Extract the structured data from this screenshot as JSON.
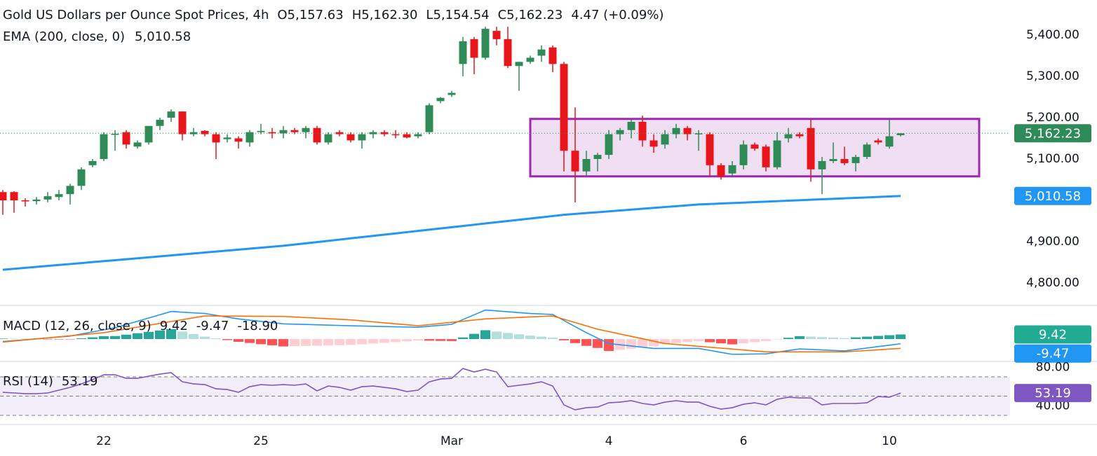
{
  "chart_data": [
    {
      "type": "candlestick",
      "title": "Gold US Dollars per Ounce Spot Prices, 4h",
      "ohlc": [
        {
          "key": "O",
          "value": 5157.63,
          "label": "5,157.63"
        },
        {
          "key": "H",
          "value": 5162.3,
          "label": "5,162.30"
        },
        {
          "key": "L",
          "value": 5154.54,
          "label": "5,154.54"
        },
        {
          "key": "C",
          "value": 5162.23,
          "label": "5,162.23"
        }
      ],
      "change": {
        "value": 4.47,
        "label": "4.47 (+0.09%)"
      },
      "categories": [
        null,
        null,
        null,
        null,
        null,
        null,
        null,
        null,
        null,
        "22",
        null,
        null,
        null,
        null,
        null,
        null,
        null,
        null,
        null,
        null,
        null,
        null,
        null,
        "25",
        null,
        null,
        null,
        null,
        null,
        null,
        null,
        null,
        null,
        null,
        null,
        null,
        null,
        null,
        null,
        null,
        "Mar",
        null,
        null,
        null,
        null,
        null,
        null,
        null,
        null,
        null,
        null,
        null,
        null,
        null,
        "4",
        null,
        null,
        null,
        null,
        null,
        null,
        null,
        null,
        null,
        null,
        null,
        "6",
        null,
        null,
        null,
        null,
        null,
        null,
        null,
        null,
        null,
        null,
        null,
        null,
        "10",
        null
      ],
      "open": [
        5020,
        5020,
        5000,
        4998,
        5002,
        5008,
        5015,
        5035,
        5085,
        5100,
        5160,
        5165,
        5130,
        5140,
        5180,
        5200,
        5215,
        5160,
        5168,
        5160,
        5148,
        5150,
        5140,
        5165,
        5165,
        5162,
        5170,
        5165,
        5175,
        5140,
        5165,
        5160,
        5145,
        5160,
        5165,
        5160,
        5160,
        5155,
        5165,
        5240,
        5255,
        5330,
        5390,
        5345,
        5410,
        5390,
        5325,
        5335,
        5350,
        5370,
        5330,
        5120,
        5070,
        5100,
        5110,
        5160,
        5170,
        5190,
        5145,
        5135,
        5160,
        5175,
        5160,
        5160,
        5085,
        5065,
        5085,
        5135,
        5130,
        5080,
        5150,
        5160,
        5175,
        5075,
        5095,
        5100,
        5090,
        5105,
        5145,
        5130,
        5157.63
      ],
      "high": [
        5025,
        5022,
        5005,
        5008,
        5020,
        5025,
        5040,
        5080,
        5100,
        5165,
        5170,
        5170,
        5145,
        5180,
        5200,
        5220,
        5215,
        5175,
        5170,
        5165,
        5160,
        5155,
        5170,
        5185,
        5175,
        5180,
        5175,
        5180,
        5180,
        5165,
        5170,
        5165,
        5165,
        5170,
        5170,
        5170,
        5165,
        5165,
        5235,
        5250,
        5265,
        5395,
        5395,
        5420,
        5420,
        5420,
        5335,
        5350,
        5375,
        5375,
        5335,
        5225,
        5120,
        5115,
        5170,
        5175,
        5195,
        5205,
        5160,
        5170,
        5185,
        5180,
        5170,
        5165,
        5090,
        5095,
        5145,
        5140,
        5135,
        5165,
        5175,
        5165,
        5195,
        5105,
        5140,
        5130,
        5110,
        5140,
        5150,
        5195,
        5162.3
      ],
      "low": [
        4965,
        4970,
        4985,
        4990,
        4995,
        5000,
        4990,
        5025,
        5080,
        5095,
        5120,
        5125,
        5125,
        5135,
        5170,
        5190,
        5145,
        5155,
        5155,
        5100,
        5140,
        5125,
        5130,
        5160,
        5150,
        5150,
        5160,
        5150,
        5135,
        5135,
        5155,
        5140,
        5125,
        5150,
        5155,
        5150,
        5150,
        5150,
        5160,
        5235,
        5250,
        5300,
        5305,
        5340,
        5375,
        5320,
        5265,
        5330,
        5335,
        5310,
        5070,
        4995,
        5060,
        5070,
        5100,
        5145,
        5150,
        5130,
        5115,
        5125,
        5150,
        5145,
        5120,
        5060,
        5050,
        5060,
        5075,
        5120,
        5070,
        5075,
        5140,
        5150,
        5045,
        5015,
        5090,
        5085,
        5070,
        5100,
        5135,
        5125,
        5154.54
      ],
      "close": [
        5000,
        5000,
        4998,
        5002,
        5010,
        5015,
        5035,
        5075,
        5095,
        5160,
        5161,
        5135,
        5140,
        5180,
        5195,
        5215,
        5160,
        5165,
        5160,
        5140,
        5152,
        5142,
        5165,
        5168,
        5162,
        5170,
        5165,
        5175,
        5140,
        5160,
        5160,
        5145,
        5160,
        5165,
        5160,
        5158,
        5152,
        5160,
        5230,
        5248,
        5260,
        5385,
        5345,
        5415,
        5390,
        5325,
        5335,
        5345,
        5365,
        5330,
        5120,
        5070,
        5100,
        5110,
        5160,
        5170,
        5190,
        5145,
        5130,
        5160,
        5175,
        5160,
        5162,
        5085,
        5058,
        5085,
        5135,
        5125,
        5080,
        5145,
        5160,
        5155,
        5075,
        5095,
        5100,
        5090,
        5105,
        5135,
        5140,
        5155,
        5162.23
      ],
      "up_color": "#2e8b57",
      "down_color": "#e8151b",
      "ylim": [
        4747.5,
        5484.7
      ],
      "yticks": [
        {
          "value": 5400,
          "label": "5,400.00"
        },
        {
          "value": 5300,
          "label": "5,300.00"
        },
        {
          "value": 5200,
          "label": "5,200.00"
        },
        {
          "value": 5100,
          "label": "5,100.00"
        },
        {
          "value": 4900,
          "label": "4,900.00"
        },
        {
          "value": 4800,
          "label": "4,800.00"
        }
      ],
      "grid": false,
      "last_price": {
        "value": 5162.23,
        "label": "5,162.23",
        "color": "#2e8b57"
      },
      "series": [
        {
          "name": "EMA (200, close, 0)",
          "color": "#2196f3",
          "values": [
            4832,
            4834.3,
            4836.6,
            4839,
            4841.3,
            4843.6,
            4845.9,
            4848.2,
            4850.6,
            4852.9,
            4855.2,
            4857.5,
            4859.8,
            4862.2,
            4864.5,
            4866.8,
            4869.1,
            4871.4,
            4873.8,
            4876.1,
            4878.4,
            4880.7,
            4883,
            4885.4,
            4887.7,
            4890,
            4893,
            4896,
            4899,
            4902,
            4905,
            4908,
            4911,
            4914,
            4917,
            4920,
            4923,
            4926,
            4929,
            4932,
            4935,
            4938,
            4941,
            4944,
            4947,
            4950,
            4953,
            4956,
            4959,
            4962,
            4965,
            4967.1,
            4969.2,
            4971.3,
            4973.3,
            4975.4,
            4977.5,
            4979.6,
            4981.7,
            4983.8,
            4985.8,
            4987.9,
            4990,
            4991.1,
            4992.3,
            4993.4,
            4994.6,
            4995.7,
            4996.8,
            4998,
            4999.1,
            5000.3,
            5001.4,
            5002.5,
            5003.7,
            5004.8,
            5006,
            5007.1,
            5008.2,
            5009.4,
            5010.58
          ],
          "last": {
            "value": 5010.58,
            "label": "5,010.58"
          }
        }
      ],
      "range_box": {
        "upper": 5197,
        "lower": 5058,
        "from": 47,
        "to": 87,
        "color": "#9c27b0"
      }
    },
    {
      "type": "macd",
      "title": "MACD (12, 26, close, 9)",
      "ylim": [
        -44,
        67
      ],
      "histogram": {
        "values": [
          1.0,
          0.7,
          0.5,
          0.2,
          -0.1,
          -0.4,
          -0.7,
          1.5,
          3.6,
          5.8,
          6.2,
          9.0,
          11.9,
          14.7,
          17.5,
          20.3,
          15.3,
          10.1,
          5.0,
          1.4,
          -2.0,
          -5.6,
          -7.9,
          -10.3,
          -12.6,
          -15.0,
          -14.5,
          -14.0,
          -13.5,
          -13.0,
          -12.5,
          -12.0,
          -10.5,
          -9.0,
          -7.5,
          -6.0,
          -4.5,
          -3.0,
          -3.3,
          -3.7,
          -4.0,
          3.4,
          10.6,
          18.0,
          15.3,
          12.5,
          9.8,
          7.0,
          5.0,
          3.0,
          -2.6,
          -8.2,
          -13.8,
          -18.0,
          -24.2,
          -21.8,
          -19.5,
          -17.2,
          -14.8,
          -10.0,
          -8.1,
          -6.2,
          -4.3,
          -6.4,
          -8.6,
          -10.7,
          -8.5,
          -6.2,
          -4.0,
          -0.7,
          2.7,
          6.0,
          5.0,
          4.0,
          3.0,
          2.0,
          3.5,
          5.0,
          6.5,
          7.9,
          9.42
        ],
        "last": 9.42,
        "color": "#22ab94",
        "colors": {
          "up_strong": "#26a69a",
          "up_weak": "#b2dfdb",
          "down_strong": "#ff5252",
          "down_weak": "#ffcdd2"
        }
      },
      "macd": {
        "color": "#2196f3",
        "last": -9.47,
        "values": [
          -5,
          -3.2,
          -1.3,
          0.5,
          2.3,
          4.2,
          6,
          10.3,
          14.5,
          18.8,
          23,
          29.6,
          36.2,
          42.8,
          49.4,
          56,
          54.7,
          53.3,
          52,
          48.3,
          44.7,
          41,
          38.5,
          36,
          33.5,
          31,
          30.3,
          29.7,
          29,
          28.3,
          27.7,
          27,
          26.5,
          26,
          25.5,
          25,
          24.5,
          24,
          26,
          28,
          30,
          39.7,
          49.3,
          59,
          57.3,
          55.5,
          53.8,
          52,
          51,
          50,
          37.7,
          25.3,
          13,
          2,
          -9,
          -11.5,
          -14,
          -16.5,
          -19,
          -19,
          -19,
          -19,
          -19,
          -23,
          -27,
          -31,
          -30.7,
          -30.3,
          -30,
          -26.7,
          -23.3,
          -20,
          -21,
          -22,
          -23,
          -24,
          -21.1,
          -18.2,
          -15.3,
          -12.4,
          -9.47
        ]
      },
      "signal": {
        "color": "#ff6d00",
        "last": {
          "value": -18.9,
          "label": "-18.90"
        },
        "values": [
          -6,
          -3.9,
          -1.8,
          0.3,
          2.4,
          4.6,
          6.7,
          8.8,
          10.9,
          13,
          16.8,
          20.6,
          24.3,
          28.1,
          31.9,
          35.7,
          39.4,
          43.2,
          47,
          46.9,
          46.7,
          46.6,
          46.4,
          46.3,
          46.1,
          46,
          44.8,
          43.7,
          42.5,
          41.3,
          40.2,
          39,
          37,
          35,
          33,
          31,
          29,
          27,
          29.3,
          31.7,
          34,
          36.3,
          38.7,
          41,
          42,
          43,
          44,
          45,
          46,
          47,
          40.3,
          33.5,
          26.8,
          20,
          15.2,
          10.3,
          5.5,
          0.7,
          -4.2,
          -9,
          -10.9,
          -12.8,
          -14.7,
          -16.6,
          -18.4,
          -20.3,
          -22.2,
          -24.1,
          -26,
          -26,
          -26,
          -26,
          -26,
          -26,
          -26,
          -26,
          -24.6,
          -23.2,
          -21.8,
          -20.3,
          -18.9
        ]
      }
    },
    {
      "type": "line",
      "title": "RSI (14)",
      "color": "#7e57c2",
      "ylim": [
        21.3,
        85.3
      ],
      "yticks": [
        {
          "value": 80,
          "label": "80.00"
        },
        {
          "value": 40,
          "label": "40.00"
        }
      ],
      "bands": [
        70,
        50,
        30
      ],
      "band_fill": "#7e57c2",
      "last": 53.19,
      "values": [
        54.0,
        53.3,
        52.5,
        52.5,
        53.3,
        56.2,
        59.1,
        62.7,
        67.1,
        72.2,
        72.2,
        68.5,
        68.5,
        70.7,
        72.9,
        74.4,
        64.9,
        62.7,
        62.0,
        57.6,
        56.9,
        54.0,
        59.8,
        62.0,
        61.3,
        62.0,
        61.3,
        62.7,
        55.5,
        60.5,
        59.1,
        56.2,
        59.8,
        60.5,
        59.1,
        57.6,
        54.7,
        56.2,
        64.9,
        67.8,
        68.5,
        78.7,
        75.1,
        78.0,
        75.1,
        59.8,
        61.3,
        62.7,
        64.9,
        60.5,
        40.9,
        35.8,
        38.0,
        38.7,
        43.1,
        43.8,
        45.3,
        42.4,
        40.9,
        43.8,
        45.3,
        43.8,
        43.8,
        39.5,
        36.5,
        38.0,
        41.6,
        43.1,
        40.9,
        46.7,
        48.9,
        48.2,
        48.2,
        40.9,
        42.4,
        42.4,
        42.4,
        43.1,
        49.6,
        48.9,
        53.19
      ]
    }
  ]
}
